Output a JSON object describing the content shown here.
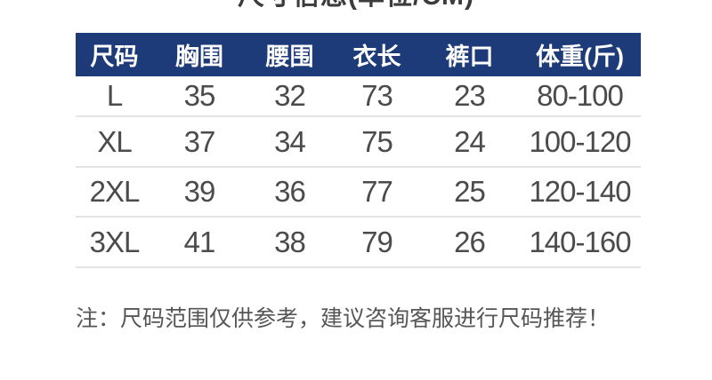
{
  "chart_data": {
    "type": "table",
    "title": "尺寸信息(单位/CM)",
    "columns": [
      "尺码",
      "胸围",
      "腰围",
      "衣长",
      "裤口",
      "体重(斤)"
    ],
    "rows": [
      [
        "L",
        "35",
        "32",
        "73",
        "23",
        "80-100"
      ],
      [
        "XL",
        "37",
        "34",
        "75",
        "24",
        "100-120"
      ],
      [
        "2XL",
        "39",
        "36",
        "77",
        "25",
        "120-140"
      ],
      [
        "3XL",
        "41",
        "38",
        "79",
        "26",
        "140-160"
      ]
    ],
    "note": "注：尺码范围仅供参考，建议咨询客服进行尺码推荐！",
    "layout": {
      "header_position": "top",
      "grid": "horizontal-dividers-only",
      "title_clipped_at_top": true,
      "legend": "none"
    }
  },
  "colors": {
    "background": "#ffffff",
    "header_bg": "#1d3a79",
    "header_text": "#ffffff",
    "body_text": "#4b4b4b",
    "note_text": "#565656",
    "divider": "#e4e4e4",
    "title_text": "#3c3c3c"
  }
}
